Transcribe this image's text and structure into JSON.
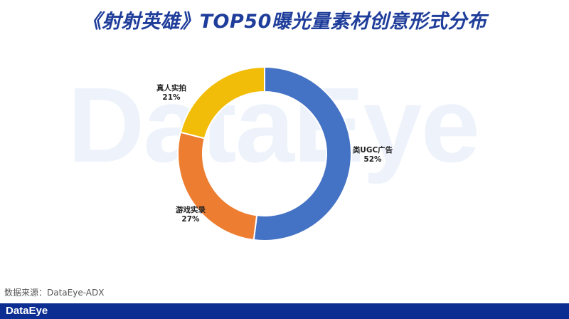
{
  "title": "《射射英雄》TOP50曝光量素材创意形式分布",
  "watermark": "DataEye",
  "source": "数据来源：DataEye-ADX",
  "footer": {
    "brand": "DataEye",
    "color": "#0c2d91"
  },
  "chart_data": {
    "type": "pie",
    "donut": true,
    "title": "《射射英雄》TOP50曝光量素材创意形式分布",
    "slices": [
      {
        "label": "类UGC广告",
        "value": 52,
        "value_label": "52%",
        "color": "#4472c4"
      },
      {
        "label": "游戏实录",
        "value": 27,
        "value_label": "27%",
        "color": "#ed7d31"
      },
      {
        "label": "真人实拍",
        "value": 21,
        "value_label": "21%",
        "color": "#f2bd09"
      }
    ],
    "start": "12 o'clock",
    "direction": "clockwise",
    "legend": "none"
  }
}
